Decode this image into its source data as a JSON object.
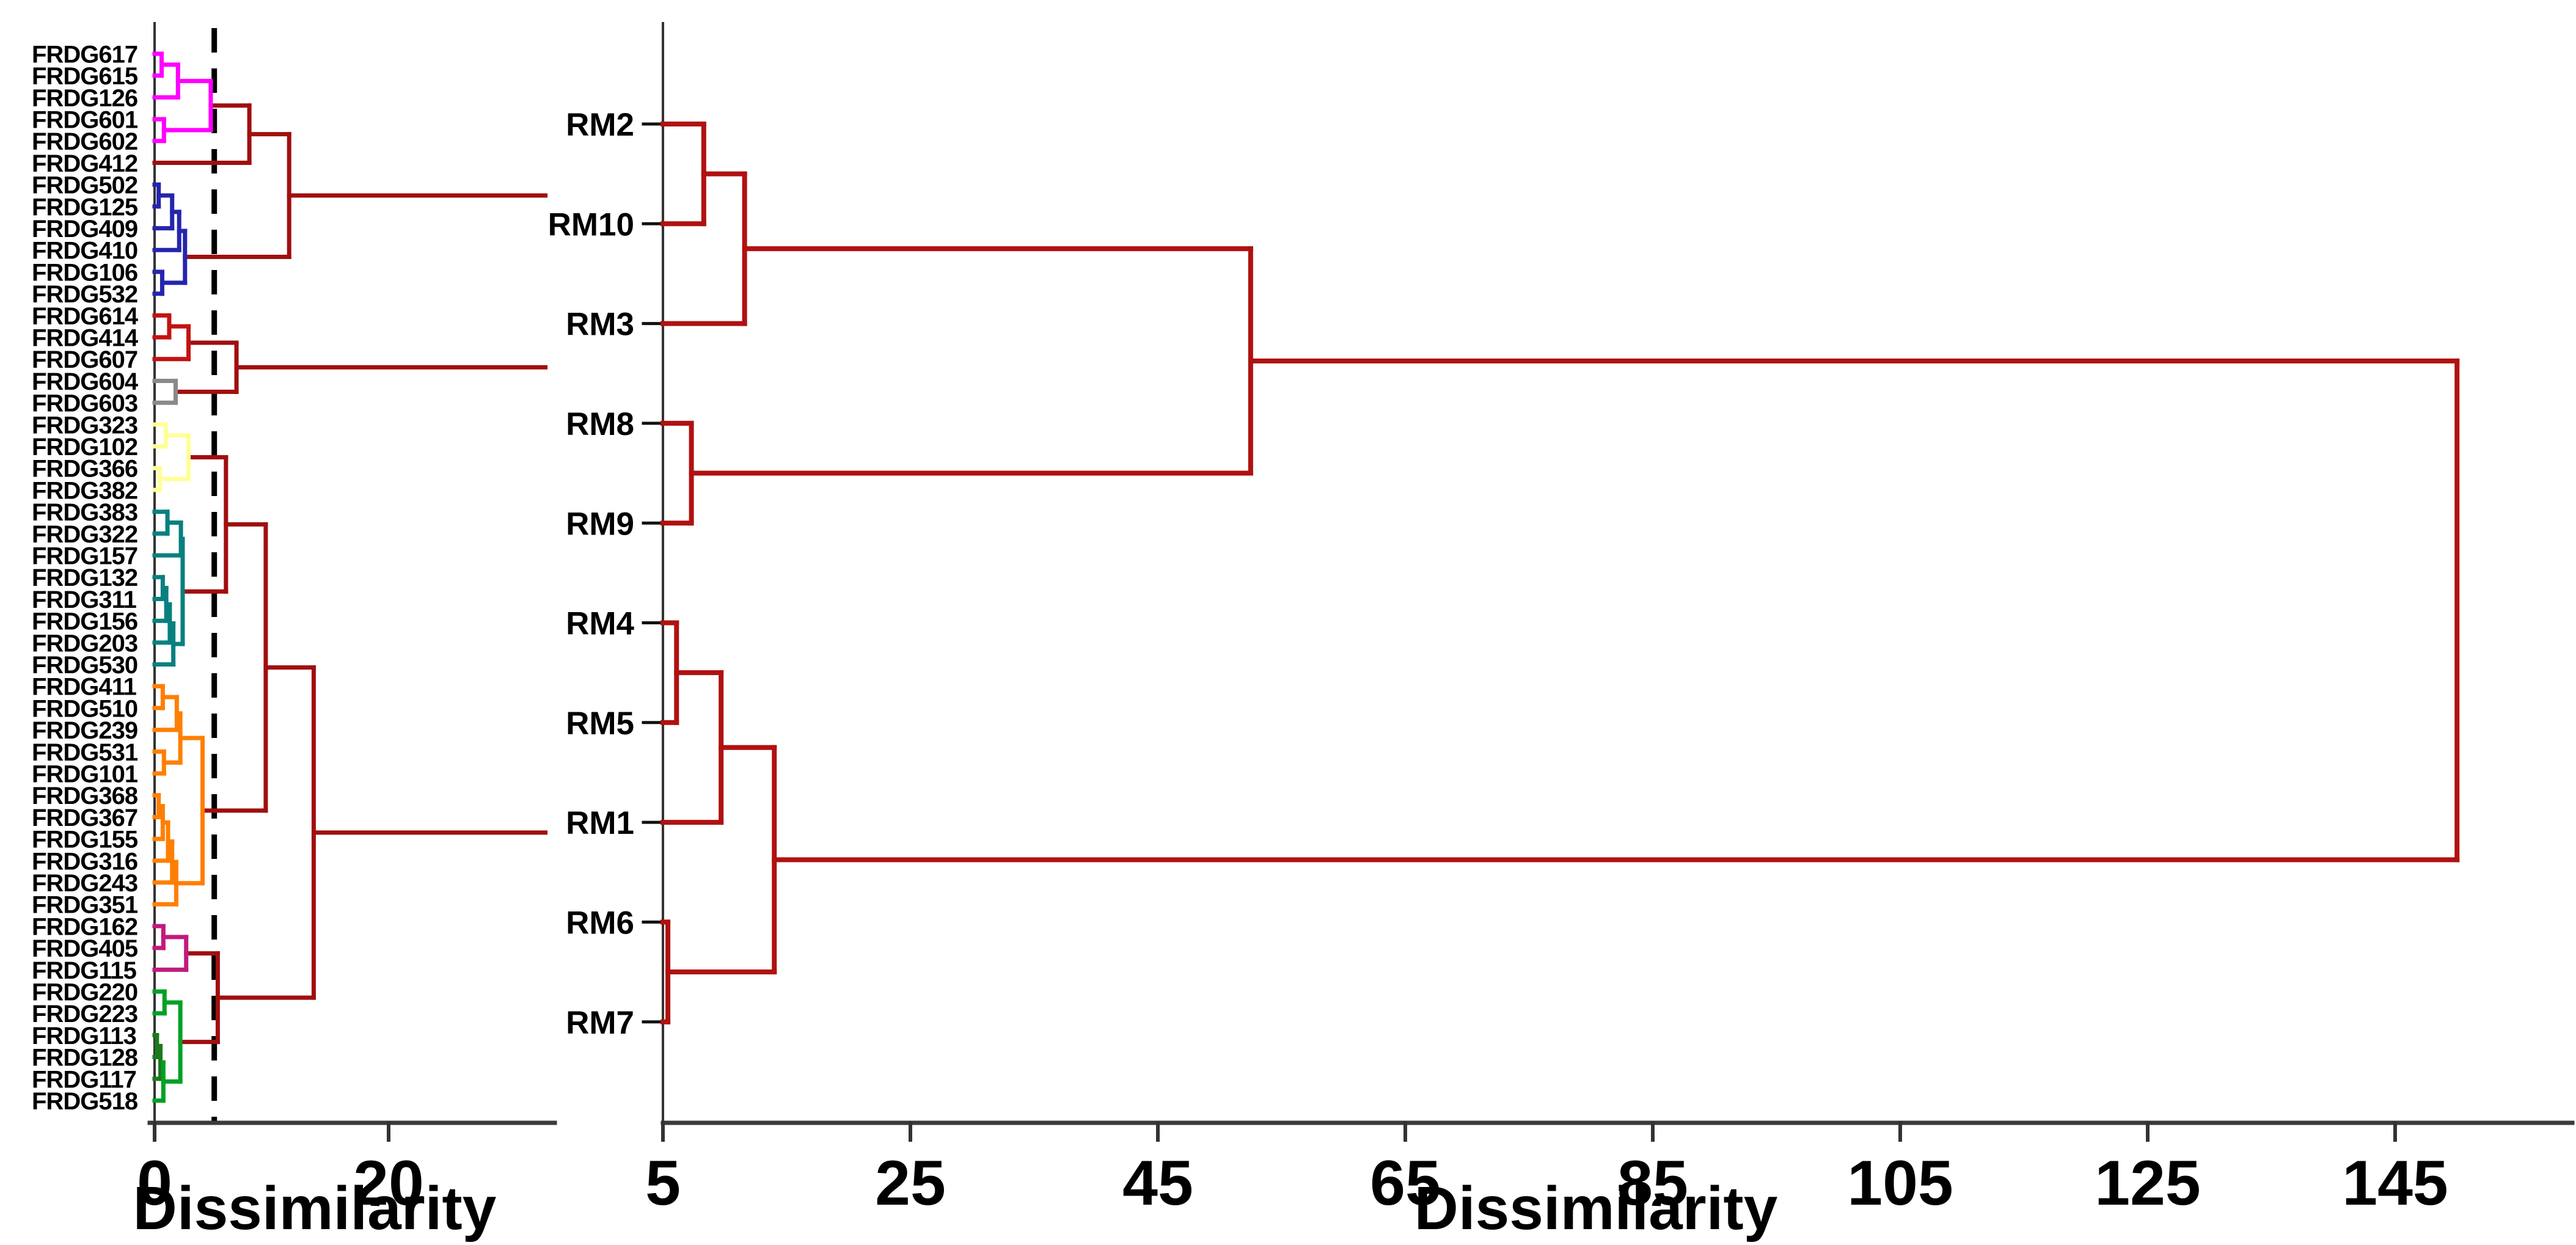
{
  "figure": {
    "background": "#ffffff"
  },
  "chart_data": [
    {
      "type": "dendrogram",
      "orientation": "horizontal",
      "panel": "left-genotypes",
      "title": "",
      "xlabel": "Dissimilarity",
      "axis": {
        "min": 0,
        "max": 34.2,
        "ticks": [
          0,
          20
        ],
        "cut_line_x": 5.1
      },
      "leaves": [
        "FRDG617",
        "FRDG615",
        "FRDG126",
        "FRDG601",
        "FRDG602",
        "FRDG412",
        "FRDG502",
        "FRDG125",
        "FRDG409",
        "FRDG410",
        "FRDG106",
        "FRDG532",
        "FRDG614",
        "FRDG414",
        "FRDG607",
        "FRDG604",
        "FRDG603",
        "FRDG323",
        "FRDG102",
        "FRDG366",
        "FRDG382",
        "FRDG383",
        "FRDG322",
        "FRDG157",
        "FRDG132",
        "FRDG311",
        "FRDG156",
        "FRDG203",
        "FRDG530",
        "FRDG411",
        "FRDG510",
        "FRDG239",
        "FRDG531",
        "FRDG101",
        "FRDG368",
        "FRDG367",
        "FRDG155",
        "FRDG316",
        "FRDG243",
        "FRDG351",
        "FRDG162",
        "FRDG405",
        "FRDG115",
        "FRDG220",
        "FRDG223",
        "FRDG113",
        "FRDG128",
        "FRDG117",
        "FRDG518"
      ],
      "palette": {
        "magenta": "#FF00FF",
        "blue": "#2525AE",
        "red": "#C41212",
        "gray": "#8A8A8A",
        "yellow": "#FFFF99",
        "teal": "#088080",
        "orange": "#FF7F00",
        "violet": "#C11A7E",
        "green": "#00A125",
        "darkgreen": "#1B7A1B",
        "connector": "#A00F0F"
      },
      "trees": [
        {
          "h": 11.5,
          "c": "connector",
          "tail": 33.4,
          "children": [
            {
              "h": 8.1,
              "c": "connector",
              "children": [
                {
                  "h": 4.8,
                  "c": "magenta",
                  "children": [
                    {
                      "h": 2.0,
                      "c": "magenta",
                      "children": [
                        {
                          "h": 0.6,
                          "c": "magenta",
                          "children": [
                            "FRDG617",
                            "FRDG615"
                          ]
                        },
                        "FRDG126"
                      ]
                    },
                    {
                      "h": 0.8,
                      "c": "magenta",
                      "children": [
                        "FRDG601",
                        "FRDG602"
                      ]
                    }
                  ]
                },
                "FRDG412"
              ]
            },
            {
              "h": 2.6,
              "c": "blue",
              "children": [
                {
                  "h": 2.1,
                  "c": "blue",
                  "children": [
                    {
                      "h": 1.5,
                      "c": "blue",
                      "children": [
                        {
                          "h": 0.35,
                          "c": "blue",
                          "children": [
                            "FRDG502",
                            "FRDG125"
                          ]
                        },
                        "FRDG409"
                      ]
                    },
                    "FRDG410"
                  ]
                },
                {
                  "h": 0.65,
                  "c": "blue",
                  "children": [
                    "FRDG106",
                    "FRDG532"
                  ]
                }
              ]
            }
          ]
        },
        {
          "h": 7.0,
          "c": "connector",
          "tail": 33.4,
          "children": [
            {
              "h": 2.9,
              "c": "red",
              "children": [
                {
                  "h": 1.25,
                  "c": "red",
                  "children": [
                    "FRDG614",
                    "FRDG414"
                  ]
                },
                "FRDG607"
              ]
            },
            {
              "h": 1.8,
              "c": "gray",
              "children": [
                "FRDG604",
                "FRDG603"
              ]
            }
          ]
        },
        {
          "h": 13.6,
          "c": "connector",
          "tail": 33.4,
          "children": [
            {
              "h": 9.5,
              "c": "connector",
              "children": [
                {
                  "h": 6.1,
                  "c": "connector",
                  "children": [
                    {
                      "h": 2.9,
                      "c": "yellow",
                      "children": [
                        {
                          "h": 0.95,
                          "c": "yellow",
                          "children": [
                            "FRDG323",
                            "FRDG102"
                          ]
                        },
                        {
                          "h": 0.45,
                          "c": "yellow",
                          "children": [
                            "FRDG366",
                            "FRDG382"
                          ]
                        }
                      ]
                    },
                    {
                      "h": 2.4,
                      "c": "teal",
                      "children": [
                        {
                          "h": 2.25,
                          "c": "teal",
                          "children": [
                            {
                              "h": 1.1,
                              "c": "teal",
                              "children": [
                                "FRDG383",
                                "FRDG322"
                              ]
                            },
                            "FRDG157"
                          ]
                        },
                        {
                          "h": 1.6,
                          "c": "teal",
                          "children": [
                            {
                              "h": 1.3,
                              "c": "teal",
                              "children": [
                                {
                                  "h": 1.0,
                                  "c": "teal",
                                  "children": [
                                    {
                                      "h": 0.7,
                                      "c": "teal",
                                      "children": [
                                        "FRDG132",
                                        "FRDG311"
                                      ]
                                    },
                                    "FRDG156"
                                  ]
                                },
                                "FRDG203"
                              ]
                            },
                            "FRDG530"
                          ]
                        }
                      ]
                    }
                  ]
                },
                {
                  "h": 4.1,
                  "c": "orange",
                  "children": [
                    {
                      "h": 2.2,
                      "c": "orange",
                      "children": [
                        {
                          "h": 1.9,
                          "c": "orange",
                          "children": [
                            {
                              "h": 0.7,
                              "c": "orange",
                              "children": [
                                "FRDG411",
                                "FRDG510"
                              ]
                            },
                            "FRDG239"
                          ]
                        },
                        {
                          "h": 0.8,
                          "c": "orange",
                          "children": [
                            "FRDG531",
                            "FRDG101"
                          ]
                        }
                      ]
                    },
                    {
                      "h": 1.85,
                      "c": "orange",
                      "children": [
                        {
                          "h": 1.5,
                          "c": "orange",
                          "children": [
                            {
                              "h": 1.15,
                              "c": "orange",
                              "children": [
                                {
                                  "h": 0.7,
                                  "c": "orange",
                                  "children": [
                                    {
                                      "h": 0.35,
                                      "c": "orange",
                                      "children": [
                                        "FRDG368",
                                        "FRDG367"
                                      ]
                                    },
                                    "FRDG155"
                                  ]
                                },
                                "FRDG316"
                              ]
                            },
                            "FRDG243"
                          ]
                        },
                        "FRDG351"
                      ]
                    }
                  ]
                }
              ]
            },
            {
              "h": 5.4,
              "c": "connector",
              "children": [
                {
                  "h": 2.7,
                  "c": "violet",
                  "children": [
                    {
                      "h": 0.75,
                      "c": "violet",
                      "children": [
                        "FRDG162",
                        "FRDG405"
                      ]
                    },
                    "FRDG115"
                  ]
                },
                {
                  "h": 2.2,
                  "c": "green",
                  "children": [
                    {
                      "h": 0.85,
                      "c": "green",
                      "children": [
                        "FRDG220",
                        "FRDG223"
                      ]
                    },
                    {
                      "h": 0.75,
                      "c": "green",
                      "children": [
                        {
                          "h": 0.5,
                          "c": "darkgreen",
                          "children": [
                            {
                              "h": 0.2,
                              "c": "darkgreen",
                              "children": [
                                "FRDG113",
                                "FRDG128"
                              ]
                            },
                            "FRDG117"
                          ]
                        },
                        "FRDG518"
                      ]
                    }
                  ]
                }
              ]
            }
          ]
        }
      ]
    },
    {
      "type": "dendrogram",
      "orientation": "horizontal",
      "panel": "right-reference-materials",
      "title": "",
      "xlabel": "Dissimilarity",
      "axis": {
        "min": 5,
        "max": 157,
        "ticks": [
          5,
          25,
          45,
          65,
          85,
          105,
          125,
          145
        ]
      },
      "leaves": [
        "RM2",
        "RM10",
        "RM3",
        "RM8",
        "RM9",
        "RM4",
        "RM5",
        "RM1",
        "RM6",
        "RM7"
      ],
      "palette": {
        "line": "#B01111"
      },
      "trees": [
        {
          "h": 150,
          "c": "line",
          "children": [
            {
              "h": 52.5,
              "c": "line",
              "children": [
                {
                  "h": 11.6,
                  "c": "line",
                  "children": [
                    {
                      "h": 8.3,
                      "c": "line",
                      "children": [
                        "RM2",
                        "RM10"
                      ]
                    },
                    "RM3"
                  ]
                },
                {
                  "h": 7.3,
                  "c": "line",
                  "children": [
                    "RM8",
                    "RM9"
                  ]
                }
              ]
            },
            {
              "h": 14.0,
              "c": "line",
              "children": [
                {
                  "h": 9.7,
                  "c": "line",
                  "children": [
                    {
                      "h": 6.1,
                      "c": "line",
                      "children": [
                        "RM4",
                        "RM5"
                      ]
                    },
                    "RM1"
                  ]
                },
                {
                  "h": 5.4,
                  "c": "line",
                  "children": [
                    "RM6",
                    "RM7"
                  ]
                }
              ]
            }
          ]
        }
      ]
    }
  ]
}
